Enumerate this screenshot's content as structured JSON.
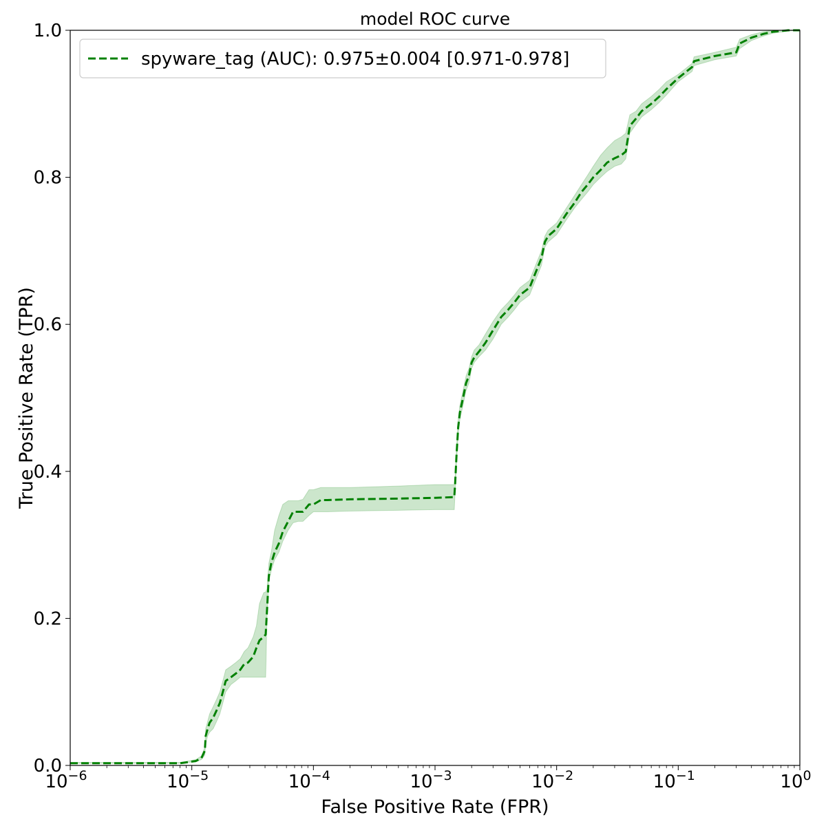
{
  "chart_data": {
    "type": "line",
    "title": "model ROC curve",
    "xlabel": "False Positive Rate (FPR)",
    "ylabel": "True Positive Rate (TPR)",
    "xscale": "log",
    "xlim": [
      1e-06,
      1
    ],
    "ylim": [
      0.0,
      1.0
    ],
    "grid": false,
    "legend_position": "top-left",
    "x_ticks": [
      {
        "value": 1e-06,
        "base": "10",
        "exp": "−6"
      },
      {
        "value": 1e-05,
        "base": "10",
        "exp": "−5"
      },
      {
        "value": 0.0001,
        "base": "10",
        "exp": "−4"
      },
      {
        "value": 0.001,
        "base": "10",
        "exp": "−3"
      },
      {
        "value": 0.01,
        "base": "10",
        "exp": "−2"
      },
      {
        "value": 0.1,
        "base": "10",
        "exp": "−1"
      },
      {
        "value": 1,
        "base": "10",
        "exp": "0"
      }
    ],
    "y_ticks": [
      {
        "value": 0.0,
        "label": "0.0"
      },
      {
        "value": 0.2,
        "label": "0.2"
      },
      {
        "value": 0.4,
        "label": "0.4"
      },
      {
        "value": 0.6,
        "label": "0.6"
      },
      {
        "value": 0.8,
        "label": "0.8"
      },
      {
        "value": 1.0,
        "label": "1.0"
      }
    ],
    "series": [
      {
        "name": "spyware_tag (AUC): 0.975±0.004 [0.971-0.978]",
        "color": "#008000",
        "band_color": "#008000",
        "line_style": "dashed",
        "x": [
          1e-06,
          8e-06,
          1.08e-05,
          1.2e-05,
          1.28e-05,
          1.3e-05,
          1.35e-05,
          1.4e-05,
          1.5e-05,
          1.6e-05,
          1.7e-05,
          1.8e-05,
          1.9e-05,
          2.1e-05,
          2.3e-05,
          2.5e-05,
          2.7e-05,
          2.9e-05,
          3.2e-05,
          3.4e-05,
          3.6e-05,
          3.9e-05,
          4.05e-05,
          4.15e-05,
          4.3e-05,
          4.5e-05,
          4.8e-05,
          5.2e-05,
          5.6e-05,
          6.2e-05,
          6.8e-05,
          7.5e-05,
          8.2e-05,
          9.2e-05,
          0.0001,
          0.000115,
          0.00013,
          0.0002,
          0.0005,
          0.001,
          0.00144,
          0.00146,
          0.0015,
          0.00155,
          0.0016,
          0.0017,
          0.0018,
          0.0019,
          0.002,
          0.0021,
          0.0023,
          0.0026,
          0.003,
          0.0035,
          0.004,
          0.0045,
          0.005,
          0.006,
          0.0067,
          0.0075,
          0.008,
          0.0085,
          0.01,
          0.012,
          0.014,
          0.016,
          0.018,
          0.02,
          0.023,
          0.026,
          0.03,
          0.034,
          0.037,
          0.04,
          0.045,
          0.05,
          0.06,
          0.07,
          0.08,
          0.1,
          0.13,
          0.135,
          0.2,
          0.3,
          0.32,
          0.4,
          0.5,
          0.6,
          0.8,
          1.0
        ],
        "y": [
          0.003,
          0.003,
          0.006,
          0.01,
          0.02,
          0.04,
          0.05,
          0.058,
          0.065,
          0.075,
          0.085,
          0.1,
          0.115,
          0.12,
          0.125,
          0.13,
          0.138,
          0.14,
          0.148,
          0.16,
          0.17,
          0.175,
          0.178,
          0.21,
          0.258,
          0.275,
          0.29,
          0.302,
          0.318,
          0.332,
          0.345,
          0.345,
          0.345,
          0.355,
          0.355,
          0.361,
          0.361,
          0.362,
          0.363,
          0.364,
          0.365,
          0.38,
          0.42,
          0.46,
          0.48,
          0.5,
          0.52,
          0.53,
          0.548,
          0.555,
          0.563,
          0.575,
          0.592,
          0.61,
          0.62,
          0.63,
          0.64,
          0.65,
          0.67,
          0.69,
          0.712,
          0.72,
          0.73,
          0.75,
          0.765,
          0.78,
          0.79,
          0.8,
          0.81,
          0.82,
          0.826,
          0.83,
          0.835,
          0.87,
          0.88,
          0.89,
          0.9,
          0.91,
          0.92,
          0.935,
          0.95,
          0.958,
          0.965,
          0.97,
          0.982,
          0.99,
          0.995,
          0.998,
          1.0,
          1.0
        ],
        "lower": [
          0.003,
          0.003,
          0.005,
          0.008,
          0.014,
          0.03,
          0.04,
          0.045,
          0.05,
          0.06,
          0.07,
          0.085,
          0.1,
          0.11,
          0.115,
          0.12,
          0.12,
          0.12,
          0.12,
          0.12,
          0.12,
          0.12,
          0.12,
          0.2,
          0.25,
          0.265,
          0.28,
          0.29,
          0.305,
          0.32,
          0.33,
          0.332,
          0.332,
          0.34,
          0.345,
          0.345,
          0.345,
          0.346,
          0.347,
          0.348,
          0.348,
          0.37,
          0.41,
          0.45,
          0.47,
          0.49,
          0.51,
          0.52,
          0.54,
          0.548,
          0.556,
          0.565,
          0.58,
          0.6,
          0.61,
          0.62,
          0.63,
          0.64,
          0.66,
          0.68,
          0.705,
          0.712,
          0.722,
          0.742,
          0.758,
          0.77,
          0.78,
          0.79,
          0.8,
          0.808,
          0.815,
          0.818,
          0.825,
          0.86,
          0.872,
          0.882,
          0.892,
          0.902,
          0.912,
          0.93,
          0.944,
          0.952,
          0.96,
          0.965,
          0.975,
          0.986,
          0.992,
          0.996,
          0.999,
          1.0
        ],
        "upper": [
          0.004,
          0.004,
          0.008,
          0.013,
          0.025,
          0.05,
          0.06,
          0.07,
          0.08,
          0.09,
          0.1,
          0.115,
          0.13,
          0.135,
          0.14,
          0.145,
          0.155,
          0.16,
          0.175,
          0.19,
          0.22,
          0.235,
          0.236,
          0.24,
          0.275,
          0.29,
          0.32,
          0.34,
          0.355,
          0.36,
          0.36,
          0.36,
          0.362,
          0.375,
          0.375,
          0.378,
          0.378,
          0.378,
          0.38,
          0.382,
          0.382,
          0.39,
          0.43,
          0.47,
          0.49,
          0.51,
          0.53,
          0.54,
          0.556,
          0.565,
          0.572,
          0.587,
          0.604,
          0.62,
          0.63,
          0.64,
          0.65,
          0.66,
          0.68,
          0.7,
          0.72,
          0.728,
          0.738,
          0.758,
          0.775,
          0.79,
          0.803,
          0.815,
          0.83,
          0.84,
          0.85,
          0.855,
          0.86,
          0.885,
          0.89,
          0.9,
          0.91,
          0.92,
          0.93,
          0.94,
          0.955,
          0.964,
          0.97,
          0.977,
          0.988,
          0.994,
          0.998,
          1.0,
          1.0,
          1.0
        ]
      }
    ]
  }
}
